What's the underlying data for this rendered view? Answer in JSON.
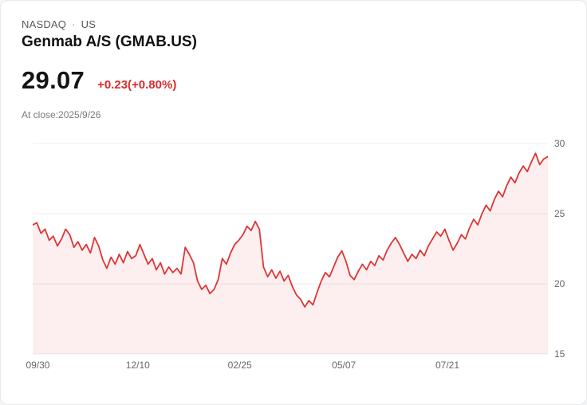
{
  "header": {
    "exchange": "NASDAQ",
    "separator": "·",
    "region": "US",
    "title": "Genmab A/S (GMAB.US)"
  },
  "quote": {
    "price": "29.07",
    "change": "+0.23(+0.80%)",
    "as_of": "At close:2025/9/26"
  },
  "colors": {
    "line": "#e03434",
    "area_fill": "rgba(224,52,52,0.08)",
    "change_text": "#d92c2c",
    "gridline": "#ececec"
  },
  "chart_data": {
    "type": "area",
    "title": "Genmab A/S (GMAB.US) 1-year price",
    "ylim": [
      15,
      30
    ],
    "y_ticks": [
      30,
      25,
      20,
      15
    ],
    "grid": true,
    "legend": "none",
    "x_ticks": [
      {
        "label": "09/30",
        "pos": 0.01
      },
      {
        "label": "12/10",
        "pos": 0.204
      },
      {
        "label": "02/25",
        "pos": 0.402
      },
      {
        "label": "05/07",
        "pos": 0.604
      },
      {
        "label": "07/21",
        "pos": 0.805
      }
    ],
    "values": [
      24.2,
      24.35,
      23.6,
      23.9,
      23.1,
      23.4,
      22.7,
      23.2,
      23.9,
      23.5,
      22.6,
      23.0,
      22.4,
      22.8,
      22.2,
      23.3,
      22.7,
      21.7,
      21.1,
      21.9,
      21.4,
      22.1,
      21.5,
      22.3,
      21.8,
      22.0,
      22.8,
      22.1,
      21.4,
      21.8,
      21.0,
      21.5,
      20.7,
      21.2,
      20.8,
      21.1,
      20.7,
      22.6,
      22.1,
      21.5,
      20.2,
      19.6,
      19.9,
      19.3,
      19.6,
      20.3,
      21.8,
      21.4,
      22.2,
      22.8,
      23.1,
      23.5,
      24.1,
      23.8,
      24.45,
      23.9,
      21.2,
      20.5,
      21.0,
      20.4,
      20.9,
      20.2,
      20.6,
      19.8,
      19.2,
      18.9,
      18.35,
      18.8,
      18.5,
      19.4,
      20.2,
      20.8,
      20.5,
      21.2,
      21.9,
      22.35,
      21.6,
      20.6,
      20.3,
      20.9,
      21.4,
      21.0,
      21.6,
      21.3,
      22.0,
      21.7,
      22.4,
      22.9,
      23.3,
      22.8,
      22.2,
      21.6,
      22.1,
      21.8,
      22.4,
      22.0,
      22.7,
      23.2,
      23.7,
      23.4,
      23.9,
      23.1,
      22.4,
      22.9,
      23.5,
      23.2,
      24.0,
      24.6,
      24.2,
      25.0,
      25.6,
      25.2,
      26.0,
      26.6,
      26.2,
      27.0,
      27.6,
      27.2,
      27.9,
      28.4,
      28.0,
      28.7,
      29.3,
      28.5,
      28.9,
      29.07
    ]
  }
}
